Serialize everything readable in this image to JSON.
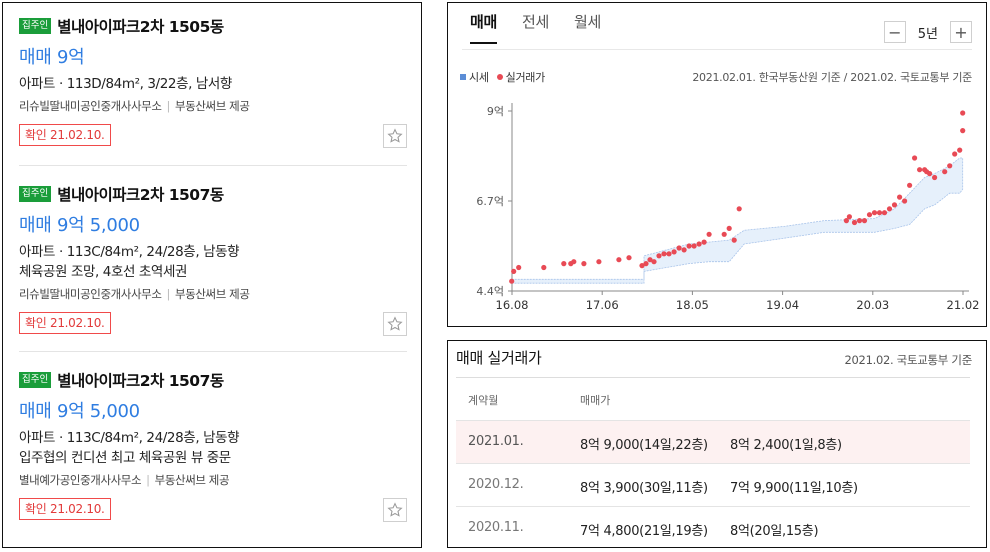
{
  "listings": [
    {
      "owner_badge": "집주인",
      "title": "별내아이파크2차 1505동",
      "price": "매매 9억",
      "detail": "아파트 · 113D/84m², 3/22층, 남서향",
      "detail2": "",
      "agency": "리슈빌딸내미공인중개사사무소",
      "provider": "부동산써브 제공",
      "confirmed": "확인 21.02.10."
    },
    {
      "owner_badge": "집주인",
      "title": "별내아이파크2차 1507동",
      "price": "매매 9억 5,000",
      "detail": "아파트 · 113C/84m², 24/28층, 남동향",
      "detail2": "체육공원 조망, 4호선 초역세권",
      "agency": "리슈빌딸내미공인중개사사무소",
      "provider": "부동산써브 제공",
      "confirmed": "확인 21.02.10."
    },
    {
      "owner_badge": "집주인",
      "title": "별내아이파크2차 1507동",
      "price": "매매 9억 5,000",
      "detail": "아파트 · 113C/84m², 24/28층, 남동향",
      "detail2": "입주협의 컨디션 최고 체육공원 뷰 중문",
      "agency": "별내예가공인중개사사무소",
      "provider": "부동산써브 제공",
      "confirmed": "확인 21.02.10."
    }
  ],
  "chart_panel": {
    "tabs": [
      "매매",
      "전세",
      "월세"
    ],
    "active_tab": "매매",
    "zoom_minus": "−",
    "zoom_label": "5년",
    "zoom_plus": "+",
    "legend_market": "시세",
    "legend_actual": "실거래가",
    "source": "2021.02.01. 한국부동산원 기준 / 2021.02. 국토교통부 기준"
  },
  "chart_data": {
    "type": "scatter",
    "title": "",
    "xlabel": "",
    "ylabel": "",
    "x_ticks": [
      "16.08",
      "17.06",
      "18.05",
      "19.04",
      "20.03",
      "21.02"
    ],
    "y_ticks": [
      "4.4억",
      "6.7억",
      "9억"
    ],
    "ylim": [
      4.4,
      9.0
    ],
    "xlim": [
      2016.583,
      2021.083
    ],
    "grid": false,
    "series": [
      {
        "name": "실거래가",
        "color": "#e84a55",
        "points": [
          [
            2016.58,
            4.65
          ],
          [
            2016.6,
            4.9
          ],
          [
            2016.65,
            5.0
          ],
          [
            2016.9,
            5.0
          ],
          [
            2017.1,
            5.1
          ],
          [
            2017.17,
            5.1
          ],
          [
            2017.2,
            5.15
          ],
          [
            2017.3,
            5.1
          ],
          [
            2017.45,
            5.15
          ],
          [
            2017.65,
            5.2
          ],
          [
            2017.75,
            5.25
          ],
          [
            2017.88,
            5.05
          ],
          [
            2017.92,
            5.1
          ],
          [
            2017.96,
            5.2
          ],
          [
            2018.0,
            5.15
          ],
          [
            2018.05,
            5.3
          ],
          [
            2018.1,
            5.35
          ],
          [
            2018.15,
            5.35
          ],
          [
            2018.2,
            5.4
          ],
          [
            2018.25,
            5.5
          ],
          [
            2018.3,
            5.45
          ],
          [
            2018.35,
            5.55
          ],
          [
            2018.4,
            5.55
          ],
          [
            2018.45,
            5.6
          ],
          [
            2018.5,
            5.65
          ],
          [
            2018.55,
            5.85
          ],
          [
            2018.7,
            5.85
          ],
          [
            2018.75,
            6.0
          ],
          [
            2018.8,
            5.7
          ],
          [
            2018.85,
            6.5
          ],
          [
            2019.92,
            6.2
          ],
          [
            2019.95,
            6.3
          ],
          [
            2020.0,
            6.15
          ],
          [
            2020.05,
            6.2
          ],
          [
            2020.1,
            6.2
          ],
          [
            2020.15,
            6.35
          ],
          [
            2020.2,
            6.4
          ],
          [
            2020.25,
            6.4
          ],
          [
            2020.3,
            6.4
          ],
          [
            2020.35,
            6.5
          ],
          [
            2020.4,
            6.6
          ],
          [
            2020.45,
            6.8
          ],
          [
            2020.5,
            6.7
          ],
          [
            2020.55,
            7.1
          ],
          [
            2020.6,
            7.8
          ],
          [
            2020.65,
            7.5
          ],
          [
            2020.7,
            7.5
          ],
          [
            2020.72,
            7.45
          ],
          [
            2020.75,
            7.4
          ],
          [
            2020.8,
            7.3
          ],
          [
            2020.9,
            7.45
          ],
          [
            2020.95,
            7.6
          ],
          [
            2021.0,
            7.9
          ],
          [
            2021.05,
            8.0
          ],
          [
            2021.08,
            8.5
          ],
          [
            2021.08,
            8.95
          ]
        ]
      },
      {
        "name": "시세",
        "color": "#5b8dd6",
        "upper": [
          [
            2016.58,
            4.7
          ],
          [
            2017.9,
            4.7
          ],
          [
            2017.9,
            5.3
          ],
          [
            2018.35,
            5.6
          ],
          [
            2018.55,
            5.65
          ],
          [
            2018.75,
            5.7
          ],
          [
            2018.9,
            5.95
          ],
          [
            2019.3,
            6.05
          ],
          [
            2019.7,
            6.2
          ],
          [
            2020.2,
            6.25
          ],
          [
            2020.4,
            6.5
          ],
          [
            2020.55,
            6.9
          ],
          [
            2020.7,
            7.3
          ],
          [
            2020.8,
            7.4
          ],
          [
            2020.95,
            7.6
          ],
          [
            2021.05,
            7.8
          ],
          [
            2021.08,
            7.8
          ]
        ],
        "lower": [
          [
            2016.58,
            4.6
          ],
          [
            2017.9,
            4.6
          ],
          [
            2017.9,
            4.9
          ],
          [
            2018.35,
            5.1
          ],
          [
            2018.55,
            5.15
          ],
          [
            2018.75,
            5.15
          ],
          [
            2018.9,
            5.6
          ],
          [
            2019.3,
            5.75
          ],
          [
            2019.7,
            5.9
          ],
          [
            2020.2,
            5.9
          ],
          [
            2020.4,
            6.0
          ],
          [
            2020.55,
            6.1
          ],
          [
            2020.7,
            6.5
          ],
          [
            2020.8,
            6.6
          ],
          [
            2020.95,
            6.9
          ],
          [
            2021.05,
            6.9
          ],
          [
            2021.08,
            7.0
          ]
        ]
      }
    ]
  },
  "transactions": {
    "title": "매매 실거래가",
    "source": "2021.02. 국토교통부 기준",
    "header_month": "계약월",
    "header_price": "매매가",
    "rows": [
      {
        "month": "2021.01.",
        "deal1": "8억 9,000(14일,22층)",
        "deal2": "8억 2,400(1일,8층)",
        "highlight": true
      },
      {
        "month": "2020.12.",
        "deal1": "8억 3,900(30일,11층)",
        "deal2": "7억 9,900(11일,10층)",
        "highlight": false
      },
      {
        "month": "2020.11.",
        "deal1": "7억 4,800(21일,19층)",
        "deal2": "8억(20일,15층)",
        "highlight": false
      }
    ]
  }
}
